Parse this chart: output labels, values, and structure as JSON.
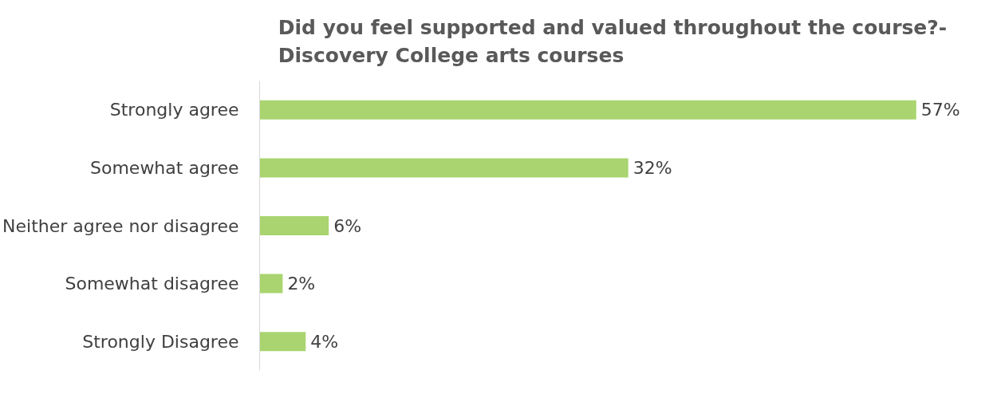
{
  "chart_data": {
    "type": "bar",
    "orientation": "horizontal",
    "title": "Did you feel supported and valued throughout the course?- Discovery College arts courses",
    "categories": [
      "Strongly agree",
      "Somewhat agree",
      "Neither agree nor disagree",
      "Somewhat disagree",
      "Strongly Disagree"
    ],
    "values": [
      57,
      32,
      6,
      2,
      4
    ],
    "value_labels": [
      "57%",
      "32%",
      "6%",
      "2%",
      "4%"
    ],
    "color": "#a9d46f",
    "grid": false
  }
}
